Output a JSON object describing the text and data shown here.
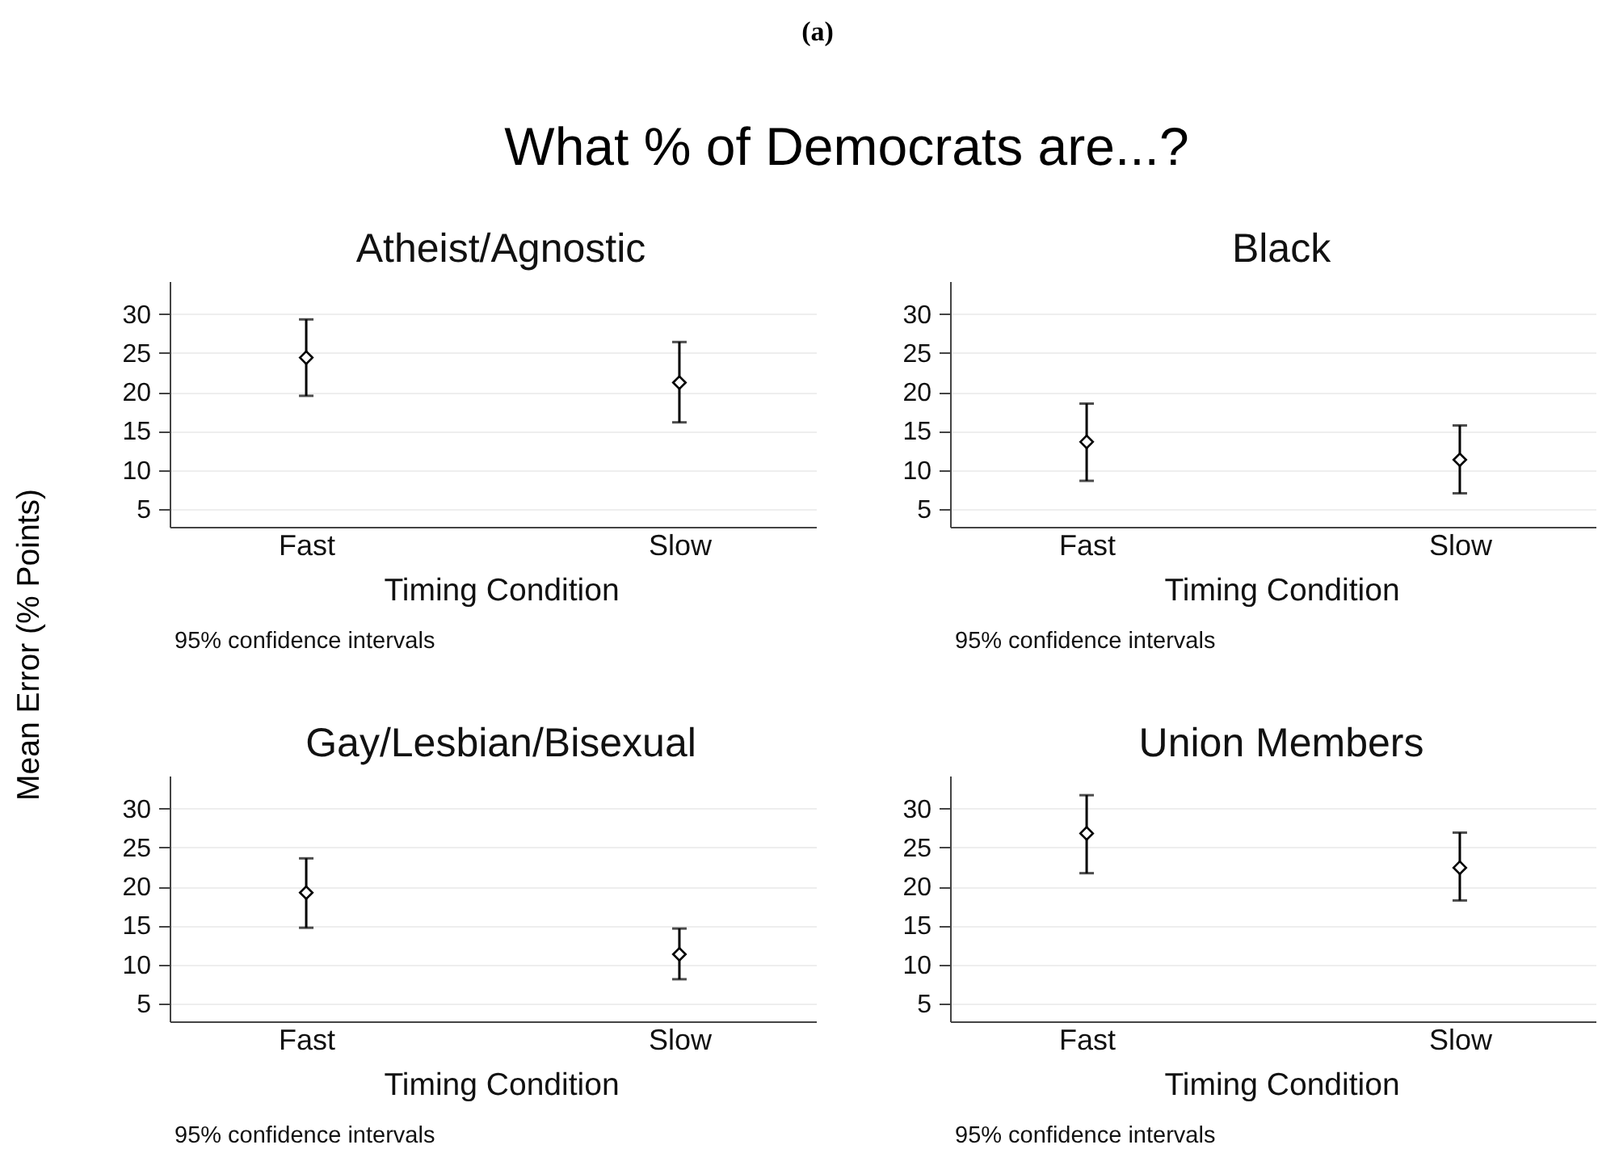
{
  "chart_data": [
    {
      "type": "other",
      "annotations": [
        "(a)"
      ],
      "title": "What % of Democrats are...?",
      "ylabel": "Mean Error (% Points)"
    },
    {
      "type": "scatter",
      "title": "Atheist/Agnostic",
      "xlabel": "Timing Condition",
      "categories": [
        "Fast",
        "Slow"
      ],
      "series": [
        {
          "color": "#000000",
          "values": [
            24.4,
            21.2
          ],
          "errors": [
            [
              19.5,
              29.3
            ],
            [
              16.1,
              26.4
            ]
          ]
        }
      ],
      "ylim": [
        2.7,
        34.2
      ],
      "yticks": [
        5,
        10,
        15,
        20,
        25,
        30
      ],
      "grid": "y",
      "marker": "diamond",
      "annotations": [
        "95% confidence intervals"
      ]
    },
    {
      "type": "scatter",
      "title": "Black",
      "xlabel": "Timing Condition",
      "categories": [
        "Fast",
        "Slow"
      ],
      "series": [
        {
          "color": "#000000",
          "values": [
            13.6,
            11.3
          ],
          "errors": [
            [
              8.6,
              18.5
            ],
            [
              7.0,
              15.7
            ]
          ]
        }
      ],
      "ylim": [
        2.7,
        34.2
      ],
      "yticks": [
        5,
        10,
        15,
        20,
        25,
        30
      ],
      "grid": "y",
      "marker": "diamond",
      "annotations": [
        "95% confidence intervals"
      ]
    },
    {
      "type": "scatter",
      "title": "Gay/Lesbian/Bisexual",
      "xlabel": "Timing Condition",
      "categories": [
        "Fast",
        "Slow"
      ],
      "series": [
        {
          "color": "#000000",
          "values": [
            19.2,
            11.3
          ],
          "errors": [
            [
              14.7,
              23.6
            ],
            [
              8.1,
              14.6
            ]
          ]
        }
      ],
      "ylim": [
        2.7,
        34.2
      ],
      "yticks": [
        5,
        10,
        15,
        20,
        25,
        30
      ],
      "grid": "y",
      "marker": "diamond",
      "annotations": [
        "95% confidence intervals"
      ]
    },
    {
      "type": "scatter",
      "title": "Union Members",
      "xlabel": "Timing Condition",
      "categories": [
        "Fast",
        "Slow"
      ],
      "series": [
        {
          "color": "#000000",
          "values": [
            26.8,
            22.4
          ],
          "errors": [
            [
              21.7,
              31.7
            ],
            [
              18.2,
              26.9
            ]
          ]
        }
      ],
      "ylim": [
        2.7,
        34.2
      ],
      "yticks": [
        5,
        10,
        15,
        20,
        25,
        30
      ],
      "grid": "y",
      "marker": "diamond",
      "annotations": [
        "95% confidence intervals"
      ]
    }
  ]
}
